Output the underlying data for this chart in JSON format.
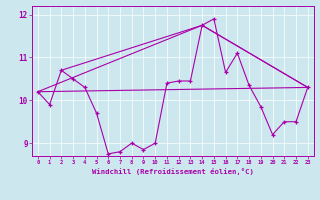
{
  "xlabel": "Windchill (Refroidissement éolien,°C)",
  "xlim": [
    -0.5,
    23.5
  ],
  "ylim": [
    8.7,
    12.2
  ],
  "yticks": [
    9,
    10,
    11,
    12
  ],
  "xticks": [
    0,
    1,
    2,
    3,
    4,
    5,
    6,
    7,
    8,
    9,
    10,
    11,
    12,
    13,
    14,
    15,
    16,
    17,
    18,
    19,
    20,
    21,
    22,
    23
  ],
  "bg_color": "#cce8ee",
  "line_color": "#aa00aa",
  "line1_x": [
    0,
    1,
    2,
    3,
    4,
    5,
    6,
    7,
    8,
    9,
    10,
    11,
    12,
    13,
    14,
    15,
    16,
    17,
    18,
    19,
    20,
    21,
    22,
    23
  ],
  "line1_y": [
    10.2,
    9.9,
    10.7,
    10.5,
    10.3,
    9.7,
    8.75,
    8.8,
    9.0,
    8.85,
    9.0,
    10.4,
    10.45,
    10.45,
    11.75,
    11.9,
    10.65,
    11.1,
    10.35,
    9.85,
    9.2,
    9.5,
    9.5,
    10.3
  ],
  "trend1_x": [
    0,
    23
  ],
  "trend1_y": [
    10.2,
    10.3
  ],
  "trend2_x": [
    0,
    23
  ],
  "trend2_y": [
    10.2,
    10.3
  ],
  "trend3_x": [
    2,
    14,
    23
  ],
  "trend3_y": [
    10.7,
    11.75,
    10.3
  ],
  "trend4_x": [
    0,
    14,
    23
  ],
  "trend4_y": [
    10.2,
    11.75,
    10.3
  ]
}
